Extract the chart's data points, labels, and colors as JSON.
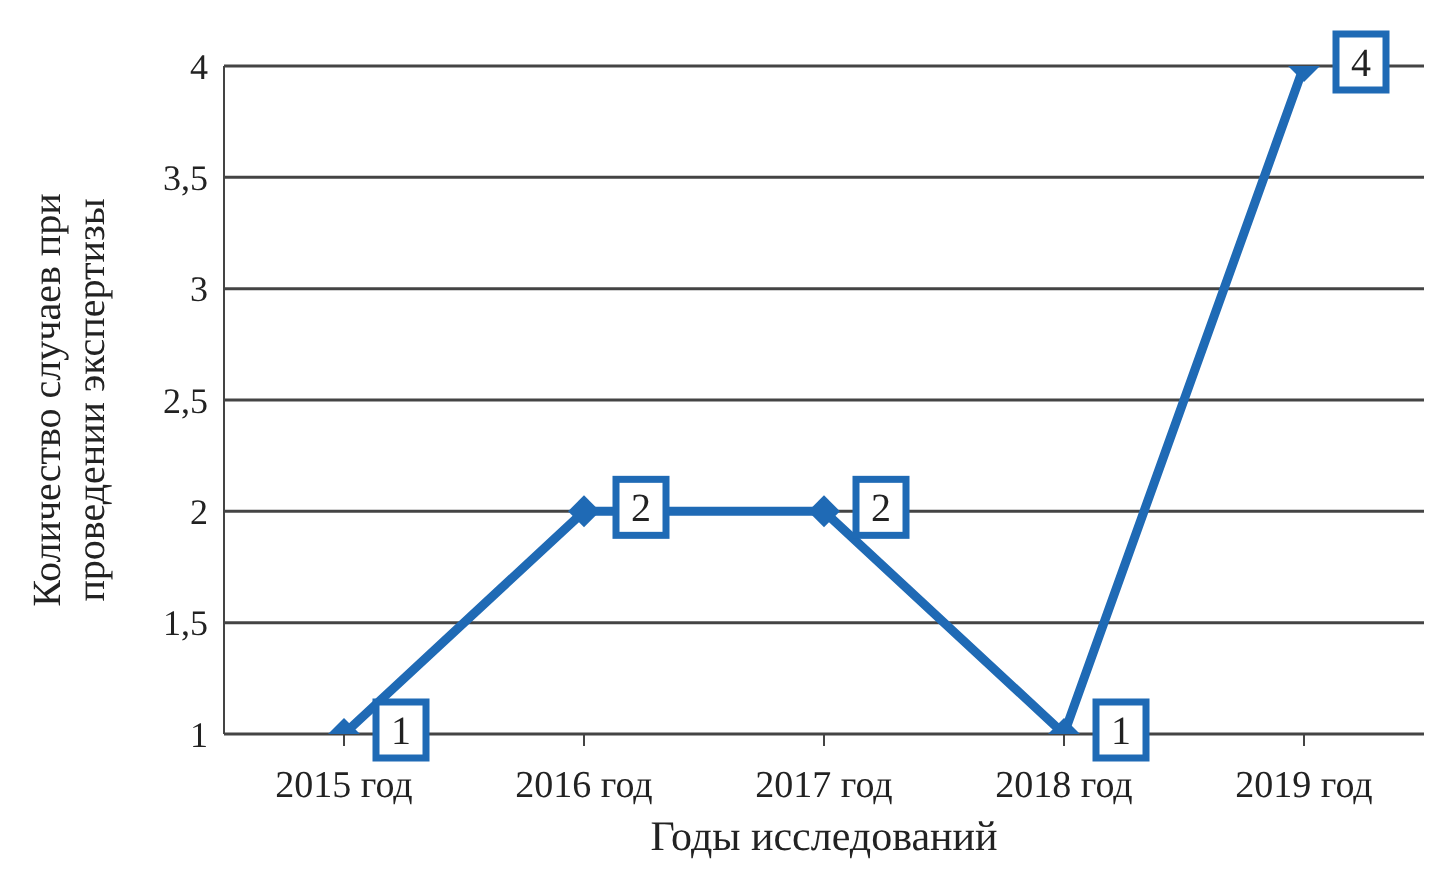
{
  "chart_data": {
    "type": "line",
    "xlabel": "Годы исследований",
    "ylabel": "Количество случаев при проведении экспертизы",
    "categories": [
      "2015 год",
      "2016 год",
      "2017 год",
      "2018 год",
      "2019 год"
    ],
    "series": [
      {
        "color": "#1f6ab5",
        "values": [
          1,
          2,
          2,
          1,
          4
        ]
      }
    ],
    "ylim": [
      1,
      4
    ],
    "yticks": [
      {
        "value": 1,
        "label": "1"
      },
      {
        "value": 1.5,
        "label": "1,5"
      },
      {
        "value": 2,
        "label": "2"
      },
      {
        "value": 2.5,
        "label": "2,5"
      },
      {
        "value": 3,
        "label": "3"
      },
      {
        "value": 3.5,
        "label": "3,5"
      },
      {
        "value": 4,
        "label": "4"
      }
    ],
    "grid": "y",
    "marker": "diamond",
    "line_style": "solid",
    "data_labels": true,
    "legend": false
  }
}
